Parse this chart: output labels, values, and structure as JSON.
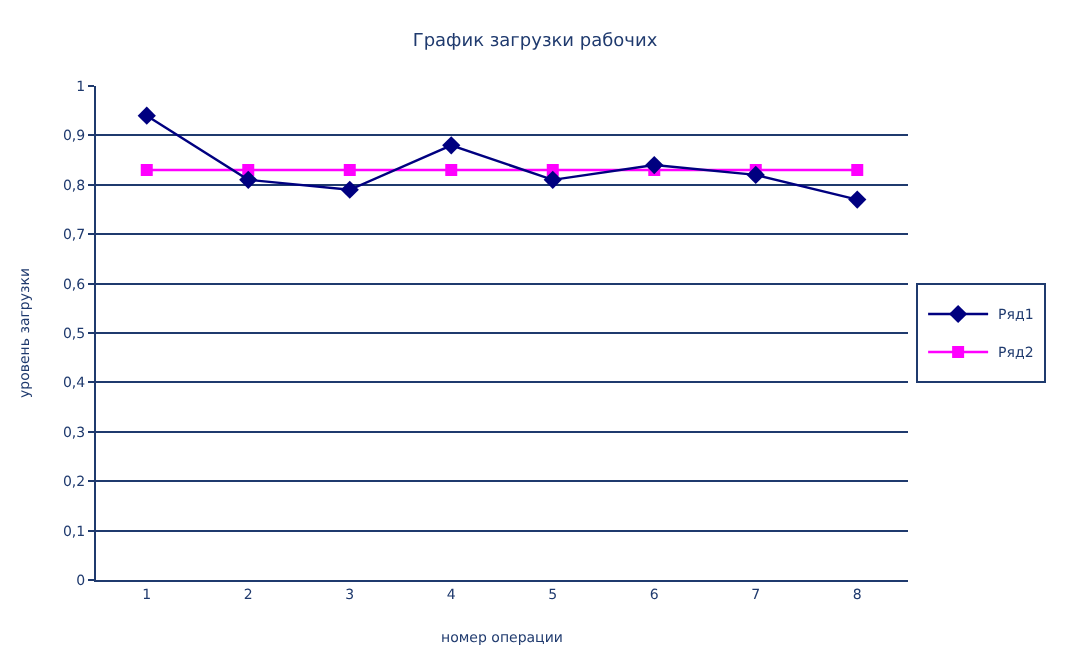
{
  "chart_data": {
    "type": "line",
    "title": "График загрузки рабочих",
    "xlabel": "номер операции",
    "ylabel": "уровень загрузки",
    "categories": [
      "1",
      "2",
      "3",
      "4",
      "5",
      "6",
      "7",
      "8"
    ],
    "series": [
      {
        "name": "Ряд1",
        "color": "#000080",
        "marker": "diamond",
        "values": [
          0.94,
          0.81,
          0.79,
          0.88,
          0.81,
          0.84,
          0.82,
          0.77
        ]
      },
      {
        "name": "Ряд2",
        "color": "#ff00ff",
        "marker": "square",
        "values": [
          0.83,
          0.83,
          0.83,
          0.83,
          0.83,
          0.83,
          0.83,
          0.83
        ]
      }
    ],
    "ylim": [
      0,
      1
    ],
    "yticks": [
      0,
      {
        "value": 0.1,
        "label": "0,1"
      },
      {
        "value": 0.2,
        "label": "0,2"
      },
      {
        "value": 0.3,
        "label": "0,3"
      },
      {
        "value": 0.4,
        "label": "0,4"
      },
      {
        "value": 0.5,
        "label": "0,5"
      },
      {
        "value": 0.6,
        "label": "0,6"
      },
      {
        "value": 0.7,
        "label": "0,7"
      },
      {
        "value": 0.8,
        "label": "0,8"
      },
      {
        "value": 0.9,
        "label": "0,9"
      },
      1
    ],
    "grid": "y",
    "legend": "right",
    "line_style": "solid"
  }
}
